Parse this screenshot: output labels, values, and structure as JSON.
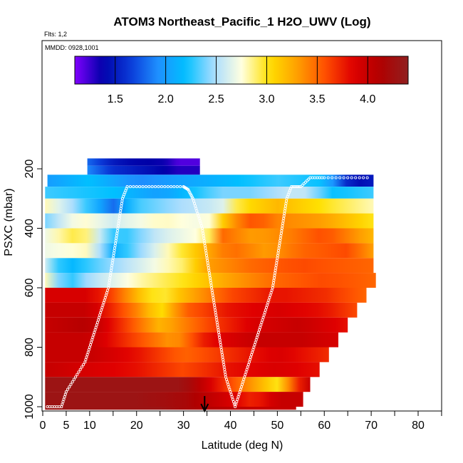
{
  "chart_data": {
    "type": "heatmap",
    "title": "ATOM3 Northeast_Pacific_1 H2O_UWV (Log)",
    "flights_label": "Flts: 1,2",
    "dates_label": "MMDD: 0928,1001",
    "xlabel": "Latitude (deg N)",
    "ylabel": "PSXC (mbar)",
    "xlim": [
      0,
      85
    ],
    "ylim": [
      1010,
      0
    ],
    "x_ticks": [
      0,
      5,
      10,
      20,
      30,
      40,
      50,
      60,
      70,
      80
    ],
    "x_minor_ticks": [
      15,
      25,
      35,
      45,
      55,
      65,
      75,
      85
    ],
    "y_ticks": [
      200,
      400,
      600,
      800,
      1000
    ],
    "colorbar": {
      "range": [
        1.1,
        4.4
      ],
      "tick_values": [
        1.5,
        2.0,
        2.5,
        3.0,
        3.5,
        4.0
      ],
      "tick_labels": [
        "1.5",
        "2.0",
        "2.5",
        "3.0",
        "3.5",
        "4.0"
      ],
      "colors": [
        "#8000ff",
        "#0000a8",
        "#0a3ad8",
        "#1e90ff",
        "#00c0ff",
        "#a8dcff",
        "#ffffe0",
        "#ffe000",
        "#ffa000",
        "#ff5000",
        "#e00000",
        "#b00000",
        "#902020"
      ]
    },
    "layers": [
      {
        "p": [
          165,
          190
        ],
        "lat": [
          9.5,
          33.5
        ],
        "v": [
          [
            9.5,
            1.8
          ],
          [
            15,
            1.5
          ],
          [
            19,
            1.4
          ],
          [
            26,
            1.35
          ],
          [
            29,
            1.2
          ],
          [
            33.5,
            1.2
          ]
        ]
      },
      {
        "p": [
          190,
          220
        ],
        "lat": [
          9.5,
          33.5
        ],
        "v": [
          [
            9.5,
            1.9
          ],
          [
            15,
            1.6
          ],
          [
            20,
            1.5
          ],
          [
            25,
            1.4
          ],
          [
            29,
            1.3
          ],
          [
            33.5,
            1.3
          ]
        ]
      },
      {
        "p": [
          220,
          260
        ],
        "lat": [
          1,
          70.5
        ],
        "v": [
          [
            1,
            2.0
          ],
          [
            10,
            2.2
          ],
          [
            20,
            1.9
          ],
          [
            35,
            2.1
          ],
          [
            50,
            2.3
          ],
          [
            60,
            2.2
          ],
          [
            66,
            1.4
          ],
          [
            70.5,
            1.5
          ]
        ]
      },
      {
        "p": [
          260,
          300
        ],
        "lat": [
          0.5,
          70.5
        ],
        "v": [
          [
            0.5,
            2.3
          ],
          [
            15,
            2.2
          ],
          [
            25,
            2.0
          ],
          [
            38,
            2.4
          ],
          [
            45,
            2.4
          ],
          [
            55,
            2.6
          ],
          [
            62,
            2.2
          ],
          [
            70.5,
            2.3
          ]
        ]
      },
      {
        "p": [
          300,
          350
        ],
        "lat": [
          0.5,
          70.5
        ],
        "v": [
          [
            0.5,
            2.8
          ],
          [
            8,
            2.4
          ],
          [
            15,
            1.8
          ],
          [
            20,
            2.3
          ],
          [
            30,
            2.5
          ],
          [
            38,
            2.6
          ],
          [
            42,
            3.0
          ],
          [
            50,
            3.2
          ],
          [
            60,
            3.0
          ],
          [
            70.5,
            2.8
          ]
        ]
      },
      {
        "p": [
          350,
          400
        ],
        "lat": [
          0.5,
          70.5
        ],
        "v": [
          [
            0.5,
            2.4
          ],
          [
            8,
            2.8
          ],
          [
            15,
            2.6
          ],
          [
            25,
            2.8
          ],
          [
            35,
            2.7
          ],
          [
            40,
            3.3
          ],
          [
            45,
            3.6
          ],
          [
            50,
            3.4
          ],
          [
            60,
            3.3
          ],
          [
            70.5,
            3.0
          ]
        ]
      },
      {
        "p": [
          400,
          450
        ],
        "lat": [
          0.5,
          70.5
        ],
        "v": [
          [
            0.5,
            2.7
          ],
          [
            8,
            3.0
          ],
          [
            16,
            2.2
          ],
          [
            25,
            2.6
          ],
          [
            35,
            2.8
          ],
          [
            38,
            3.5
          ],
          [
            45,
            3.3
          ],
          [
            52,
            3.4
          ],
          [
            60,
            3.6
          ],
          [
            70.5,
            3.2
          ]
        ]
      },
      {
        "p": [
          450,
          500
        ],
        "lat": [
          0.5,
          70.5
        ],
        "v": [
          [
            0.5,
            2.7
          ],
          [
            10,
            2.8
          ],
          [
            15,
            2.1
          ],
          [
            25,
            2.7
          ],
          [
            32,
            3.1
          ],
          [
            40,
            3.5
          ],
          [
            48,
            3.3
          ],
          [
            55,
            3.5
          ],
          [
            65,
            3.6
          ],
          [
            70.5,
            3.3
          ]
        ]
      },
      {
        "p": [
          500,
          550
        ],
        "lat": [
          0.5,
          70.5
        ],
        "v": [
          [
            0.5,
            2.6
          ],
          [
            5,
            2.1
          ],
          [
            10,
            2.3
          ],
          [
            20,
            2.6
          ],
          [
            30,
            2.9
          ],
          [
            35,
            3.3
          ],
          [
            45,
            3.5
          ],
          [
            55,
            3.6
          ],
          [
            70.5,
            3.5
          ]
        ]
      },
      {
        "p": [
          550,
          600
        ],
        "lat": [
          0.5,
          71
        ],
        "v": [
          [
            0.5,
            2.8
          ],
          [
            5,
            2.2
          ],
          [
            10,
            2.5
          ],
          [
            20,
            2.8
          ],
          [
            30,
            3.0
          ],
          [
            40,
            3.3
          ],
          [
            50,
            3.5
          ],
          [
            60,
            3.6
          ],
          [
            71,
            3.5
          ]
        ]
      },
      {
        "p": [
          600,
          650
        ],
        "lat": [
          0.5,
          69
        ],
        "v": [
          [
            0.5,
            3.9
          ],
          [
            10,
            3.9
          ],
          [
            15,
            3.6
          ],
          [
            20,
            3.2
          ],
          [
            25,
            2.9
          ],
          [
            30,
            3.2
          ],
          [
            40,
            3.6
          ],
          [
            50,
            3.8
          ],
          [
            60,
            3.7
          ],
          [
            69,
            3.5
          ]
        ]
      },
      {
        "p": [
          650,
          700
        ],
        "lat": [
          0.5,
          67
        ],
        "v": [
          [
            0.5,
            4.0
          ],
          [
            10,
            4.0
          ],
          [
            15,
            3.7
          ],
          [
            20,
            3.4
          ],
          [
            25,
            3.0
          ],
          [
            30,
            3.5
          ],
          [
            40,
            3.8
          ],
          [
            50,
            3.9
          ],
          [
            60,
            3.8
          ],
          [
            67,
            3.6
          ]
        ]
      },
      {
        "p": [
          700,
          750
        ],
        "lat": [
          0.5,
          65
        ],
        "v": [
          [
            0.5,
            4.0
          ],
          [
            10,
            4.1
          ],
          [
            15,
            3.8
          ],
          [
            20,
            3.5
          ],
          [
            25,
            3.2
          ],
          [
            35,
            3.6
          ],
          [
            45,
            3.9
          ],
          [
            55,
            4.0
          ],
          [
            65,
            3.8
          ]
        ]
      },
      {
        "p": [
          750,
          800
        ],
        "lat": [
          0.5,
          63
        ],
        "v": [
          [
            0.5,
            4.0
          ],
          [
            10,
            4.0
          ],
          [
            15,
            3.8
          ],
          [
            20,
            3.6
          ],
          [
            28,
            3.3
          ],
          [
            35,
            3.8
          ],
          [
            45,
            4.0
          ],
          [
            55,
            4.0
          ],
          [
            63,
            3.9
          ]
        ]
      },
      {
        "p": [
          800,
          850
        ],
        "lat": [
          0.5,
          61
        ],
        "v": [
          [
            0.5,
            4.0
          ],
          [
            10,
            4.0
          ],
          [
            20,
            3.8
          ],
          [
            30,
            3.5
          ],
          [
            40,
            3.7
          ],
          [
            50,
            3.9
          ],
          [
            61,
            3.7
          ]
        ]
      },
      {
        "p": [
          850,
          900
        ],
        "lat": [
          0.5,
          59
        ],
        "v": [
          [
            0.5,
            4.0
          ],
          [
            10,
            3.9
          ],
          [
            20,
            3.8
          ],
          [
            30,
            3.6
          ],
          [
            40,
            3.8
          ],
          [
            50,
            3.9
          ],
          [
            59,
            3.8
          ]
        ]
      },
      {
        "p": [
          900,
          950
        ],
        "lat": [
          0.5,
          57
        ],
        "v": [
          [
            0.5,
            4.3
          ],
          [
            20,
            4.3
          ],
          [
            30,
            4.3
          ],
          [
            40,
            3.6
          ],
          [
            45,
            3.3
          ],
          [
            50,
            3.0
          ],
          [
            55,
            3.8
          ],
          [
            57,
            4.0
          ]
        ]
      },
      {
        "p": [
          950,
          1000
        ],
        "lat": [
          0.5,
          55.5
        ],
        "v": [
          [
            0.5,
            4.3
          ],
          [
            20,
            4.3
          ],
          [
            30,
            4.2
          ],
          [
            40,
            3.9
          ],
          [
            45,
            3.7
          ],
          [
            50,
            4.0
          ],
          [
            55.5,
            4.0
          ]
        ]
      },
      {
        "p": [
          1000,
          1010
        ],
        "lat": [
          0.5,
          54
        ],
        "v": [
          [
            0.5,
            4.3
          ],
          [
            25,
            4.3
          ],
          [
            35,
            4.1
          ],
          [
            45,
            4.0
          ],
          [
            54,
            4.0
          ]
        ]
      }
    ],
    "flight_track": [
      [
        1,
        1000
      ],
      [
        4,
        1000
      ],
      [
        5,
        950
      ],
      [
        7,
        900
      ],
      [
        9,
        850
      ],
      [
        10,
        800
      ],
      [
        11,
        750
      ],
      [
        12,
        700
      ],
      [
        13,
        650
      ],
      [
        14,
        600
      ],
      [
        14.5,
        550
      ],
      [
        15,
        500
      ],
      [
        15.5,
        450
      ],
      [
        16,
        400
      ],
      [
        16.5,
        350
      ],
      [
        17,
        300
      ],
      [
        18,
        260
      ],
      [
        22,
        260
      ],
      [
        26,
        260
      ],
      [
        30,
        260
      ],
      [
        31,
        270
      ],
      [
        32,
        300
      ],
      [
        33,
        350
      ],
      [
        34,
        400
      ],
      [
        34.5,
        450
      ],
      [
        35,
        500
      ],
      [
        35.5,
        550
      ],
      [
        36,
        600
      ],
      [
        36.5,
        650
      ],
      [
        37,
        700
      ],
      [
        37.5,
        750
      ],
      [
        38,
        800
      ],
      [
        38.5,
        850
      ],
      [
        39,
        900
      ],
      [
        40,
        950
      ],
      [
        41,
        1000
      ],
      [
        42,
        950
      ],
      [
        43,
        900
      ],
      [
        44,
        850
      ],
      [
        45,
        800
      ],
      [
        46,
        750
      ],
      [
        47,
        700
      ],
      [
        48,
        650
      ],
      [
        49,
        600
      ],
      [
        49.5,
        550
      ],
      [
        50,
        500
      ],
      [
        50.5,
        450
      ],
      [
        51,
        400
      ],
      [
        51.5,
        350
      ],
      [
        52,
        300
      ],
      [
        53,
        260
      ],
      [
        55,
        260
      ],
      [
        57,
        230
      ],
      [
        60,
        230
      ],
      [
        65,
        230
      ],
      [
        70,
        230
      ]
    ],
    "arrow_lat": 34.5
  }
}
